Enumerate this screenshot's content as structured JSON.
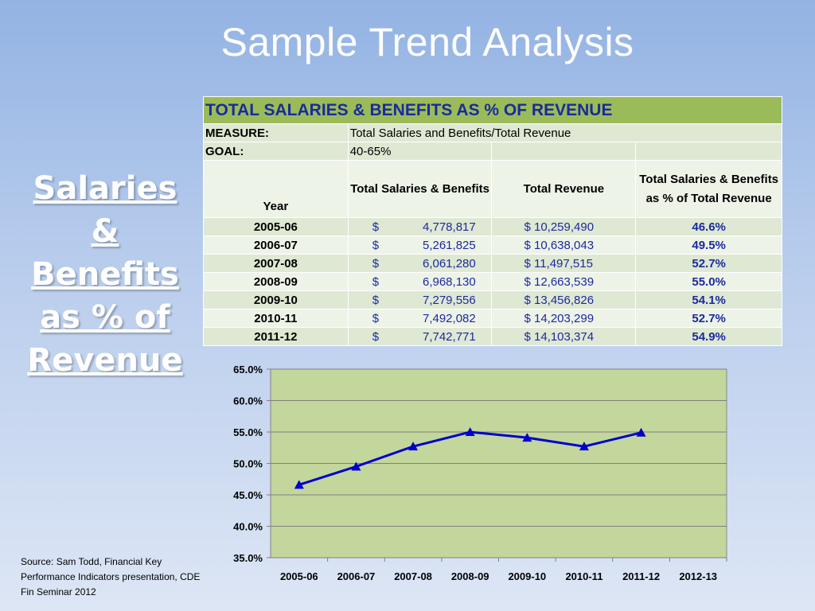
{
  "slide": {
    "title": "Sample Trend Analysis",
    "side_title": "Salaries & Benefits as % of Revenue",
    "source": "Source: Sam Todd, Financial Key Performance Indicators presentation, CDE Fin Seminar 2012"
  },
  "table": {
    "heading": "TOTAL SALARIES & BENEFITS AS % OF REVENUE",
    "measure_label": "MEASURE:",
    "measure_value": "Total Salaries and Benefits/Total Revenue",
    "goal_label": "GOAL:",
    "goal_value": "40-65%",
    "col_year": "Year",
    "col_salaries": "Total Salaries & Benefits",
    "col_revenue": "Total Revenue",
    "col_pct": "Total Salaries & Benefits as % of Total Revenue",
    "rows": [
      {
        "year": "2005-06",
        "salaries_dollar": "$",
        "salaries": "4,778,817",
        "revenue": "$ 10,259,490",
        "pct": "46.6%"
      },
      {
        "year": "2006-07",
        "salaries_dollar": "$",
        "salaries": "5,261,825",
        "revenue": "$ 10,638,043",
        "pct": "49.5%"
      },
      {
        "year": "2007-08",
        "salaries_dollar": "$",
        "salaries": "6,061,280",
        "revenue": "$ 11,497,515",
        "pct": "52.7%"
      },
      {
        "year": "2008-09",
        "salaries_dollar": "$",
        "salaries": "6,968,130",
        "revenue": "$ 12,663,539",
        "pct": "55.0%"
      },
      {
        "year": "2009-10",
        "salaries_dollar": "$",
        "salaries": "7,279,556",
        "revenue": "$ 13,456,826",
        "pct": "54.1%"
      },
      {
        "year": "2010-11",
        "salaries_dollar": "$",
        "salaries": "7,492,082",
        "revenue": "$ 14,203,299",
        "pct": "52.7%"
      },
      {
        "year": "2011-12",
        "salaries_dollar": "$",
        "salaries": "7,742,771",
        "revenue": "$ 14,103,374",
        "pct": "54.9%"
      }
    ]
  },
  "colors": {
    "accent_green": "#9bbb59",
    "plot_bg": "#c3d69b",
    "line_blue": "#0000cc",
    "heading_blue": "#1a2a9e"
  },
  "chart_data": {
    "type": "line",
    "categories": [
      "2005-06",
      "2006-07",
      "2007-08",
      "2008-09",
      "2009-10",
      "2010-11",
      "2011-12",
      "2012-13"
    ],
    "series": [
      {
        "values": [
          46.6,
          49.5,
          52.7,
          55.0,
          54.1,
          52.7,
          54.9,
          null
        ]
      }
    ],
    "ylim": [
      35,
      65
    ],
    "yticks": [
      "35.0%",
      "40.0%",
      "45.0%",
      "50.0%",
      "55.0%",
      "60.0%",
      "65.0%"
    ],
    "ytick_values": [
      35,
      40,
      45,
      50,
      55,
      60,
      65
    ],
    "grid": true,
    "marker": "triangle"
  }
}
